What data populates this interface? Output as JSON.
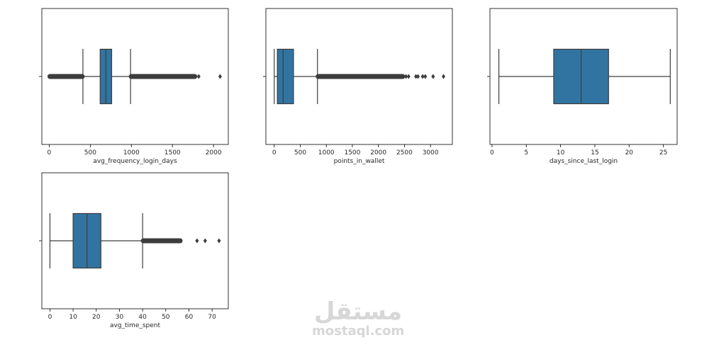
{
  "colors": {
    "box": "#3274a1",
    "line": "#3d3d3d",
    "frame": "#000000"
  },
  "watermark": {
    "arabic": "مستقل",
    "latin": "mostaql.com"
  },
  "chart_data": [
    {
      "type": "box",
      "orientation": "horizontal",
      "xlabel": "avg_frequency_login_days",
      "xlim": [
        -90,
        2180
      ],
      "xticks": [
        0,
        500,
        1000,
        1500,
        2000
      ],
      "min": 0,
      "q1": 620,
      "median": 690,
      "q3": 760,
      "max": 990,
      "whisker_low": 410,
      "whisker_high": 990,
      "outlier_ranges": [
        [
          0,
          410
        ],
        [
          990,
          1780
        ]
      ],
      "outliers": [
        1820,
        2080
      ]
    },
    {
      "type": "box",
      "orientation": "horizontal",
      "xlabel": "points_in_wallet",
      "xlim": [
        -160,
        3420
      ],
      "xticks": [
        0,
        500,
        1000,
        1500,
        2000,
        2500,
        3000
      ],
      "q1": 60,
      "median": 170,
      "q3": 370,
      "whisker_low": 0,
      "whisker_high": 830,
      "outlier_ranges": [
        [
          830,
          2480
        ]
      ],
      "outliers": [
        2530,
        2580,
        2720,
        2760,
        2850,
        2900,
        3050,
        3250
      ]
    },
    {
      "type": "box",
      "orientation": "horizontal",
      "xlabel": "days_since_last_login",
      "xlim": [
        -0.3,
        27.0
      ],
      "xticks": [
        0,
        5,
        10,
        15,
        20,
        25
      ],
      "q1": 9,
      "median": 13,
      "q3": 17,
      "whisker_low": 1,
      "whisker_high": 26,
      "outlier_ranges": [],
      "outliers": []
    },
    {
      "type": "box",
      "orientation": "horizontal",
      "xlabel": "avg_time_spent",
      "xlim": [
        -3.5,
        77.0
      ],
      "xticks": [
        0,
        10,
        20,
        30,
        40,
        50,
        60,
        70
      ],
      "q1": 10,
      "median": 16,
      "q3": 22,
      "whisker_low": 0,
      "whisker_high": 40,
      "outlier_ranges": [
        [
          40,
          56.5
        ]
      ],
      "outliers": [
        63.5,
        67,
        73
      ]
    }
  ]
}
